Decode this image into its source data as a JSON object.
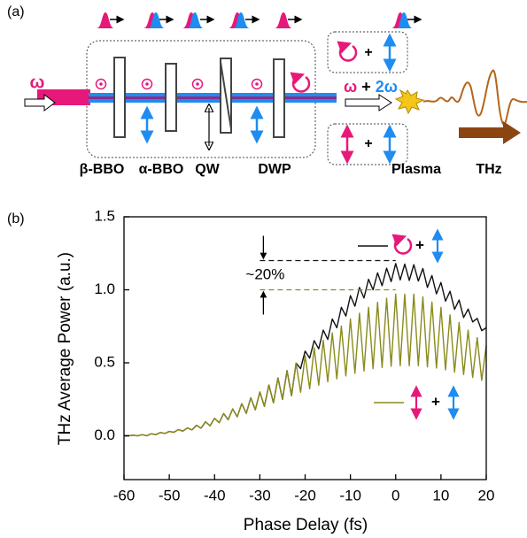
{
  "diagram": {
    "panel_label": "(a)",
    "input_label": "ω",
    "components": [
      "β-BBO",
      "α-BBO",
      "QW",
      "DWP"
    ],
    "output_label": {
      "omega": "ω",
      "plus": "+",
      "two_omega": "2ω"
    },
    "box_plus": [
      "+",
      "+"
    ],
    "plasma": "Plasma",
    "thz": "THz"
  },
  "chart_data": {
    "type": "line",
    "panel_label": "(b)",
    "x_label": "Phase Delay (fs)",
    "y_label": "THz Average Power (a.u.)",
    "xlim": [
      -60,
      20
    ],
    "xticks": [
      -60,
      -50,
      -40,
      -30,
      -20,
      -10,
      0,
      10,
      20
    ],
    "ylim": [
      -0.3,
      1.5
    ],
    "yticks": [
      {
        "value": 0,
        "label": "0.0"
      },
      0.5,
      {
        "value": 1,
        "label": "1.0"
      },
      1.5
    ],
    "x": [
      -60,
      -59,
      -58,
      -57,
      -56,
      -55,
      -54,
      -53,
      -52,
      -51,
      -50,
      -49,
      -48,
      -47,
      -46,
      -45,
      -44,
      -43,
      -42,
      -41,
      -40,
      -39,
      -38,
      -37,
      -36,
      -35,
      -34,
      -33,
      -32,
      -31,
      -30,
      -29,
      -28,
      -27,
      -26,
      -25,
      -24,
      -23,
      -22,
      -21,
      -20,
      -19,
      -18,
      -17,
      -16,
      -15,
      -14,
      -13,
      -12,
      -11,
      -10,
      -9,
      -8,
      -7,
      -6,
      -5,
      -4,
      -3,
      -2,
      -1,
      0,
      1,
      2,
      3,
      4,
      5,
      6,
      7,
      8,
      9,
      10,
      11,
      12,
      13,
      14,
      15,
      16,
      17,
      18,
      19,
      20
    ],
    "series": [
      {
        "color": "#111111",
        "legend_text": "+",
        "values": [
          0,
          0,
          0.004,
          0,
          0.008,
          0,
          0.014,
          0.008,
          0.022,
          0.016,
          0.03,
          0.024,
          0.042,
          0.032,
          0.054,
          0.04,
          0.072,
          0.052,
          0.096,
          0.068,
          0.12,
          0.09,
          0.152,
          0.11,
          0.184,
          0.13,
          0.22,
          0.154,
          0.26,
          0.178,
          0.3,
          0.202,
          0.348,
          0.226,
          0.396,
          0.25,
          0.446,
          0.274,
          0.498,
          0.46,
          0.58,
          0.532,
          0.652,
          0.596,
          0.724,
          0.66,
          0.8,
          0.74,
          0.88,
          0.82,
          0.96,
          0.888,
          1.016,
          0.944,
          1.072,
          1.0,
          1.116,
          1.028,
          1.148,
          1.056,
          1.18,
          1.068,
          1.176,
          1.064,
          1.172,
          1.06,
          1.146,
          1.016,
          1.098,
          0.972,
          1.05,
          0.922,
          0.99,
          0.866,
          0.93,
          0.81,
          0.868,
          0.78,
          0.804,
          0.72,
          0.74
        ]
      },
      {
        "color": "#8a8a1c",
        "legend_text": "+",
        "values": [
          0,
          0,
          0.004,
          0,
          0.008,
          0,
          0.014,
          0.008,
          0.022,
          0.016,
          0.03,
          0.024,
          0.042,
          0.032,
          0.054,
          0.04,
          0.072,
          0.052,
          0.096,
          0.068,
          0.12,
          0.09,
          0.152,
          0.11,
          0.184,
          0.13,
          0.22,
          0.154,
          0.26,
          0.178,
          0.3,
          0.202,
          0.348,
          0.226,
          0.396,
          0.25,
          0.446,
          0.274,
          0.498,
          0.298,
          0.55,
          0.322,
          0.602,
          0.346,
          0.654,
          0.37,
          0.704,
          0.39,
          0.752,
          0.41,
          0.8,
          0.428,
          0.84,
          0.444,
          0.88,
          0.46,
          0.914,
          0.468,
          0.942,
          0.476,
          0.97,
          0.48,
          0.97,
          0.48,
          0.97,
          0.48,
          0.952,
          0.472,
          0.916,
          0.464,
          0.88,
          0.452,
          0.828,
          0.436,
          0.776,
          0.42,
          0.724,
          0.4,
          0.672,
          0.38,
          0.62
        ]
      }
    ],
    "reference_lines": [
      {
        "value": 1.2,
        "x_range": [
          -30,
          0
        ],
        "color": "#111111"
      },
      {
        "value": 1,
        "x_range": [
          -30,
          0
        ],
        "color": "#8a8a1c"
      }
    ],
    "annotation": "~20%"
  }
}
